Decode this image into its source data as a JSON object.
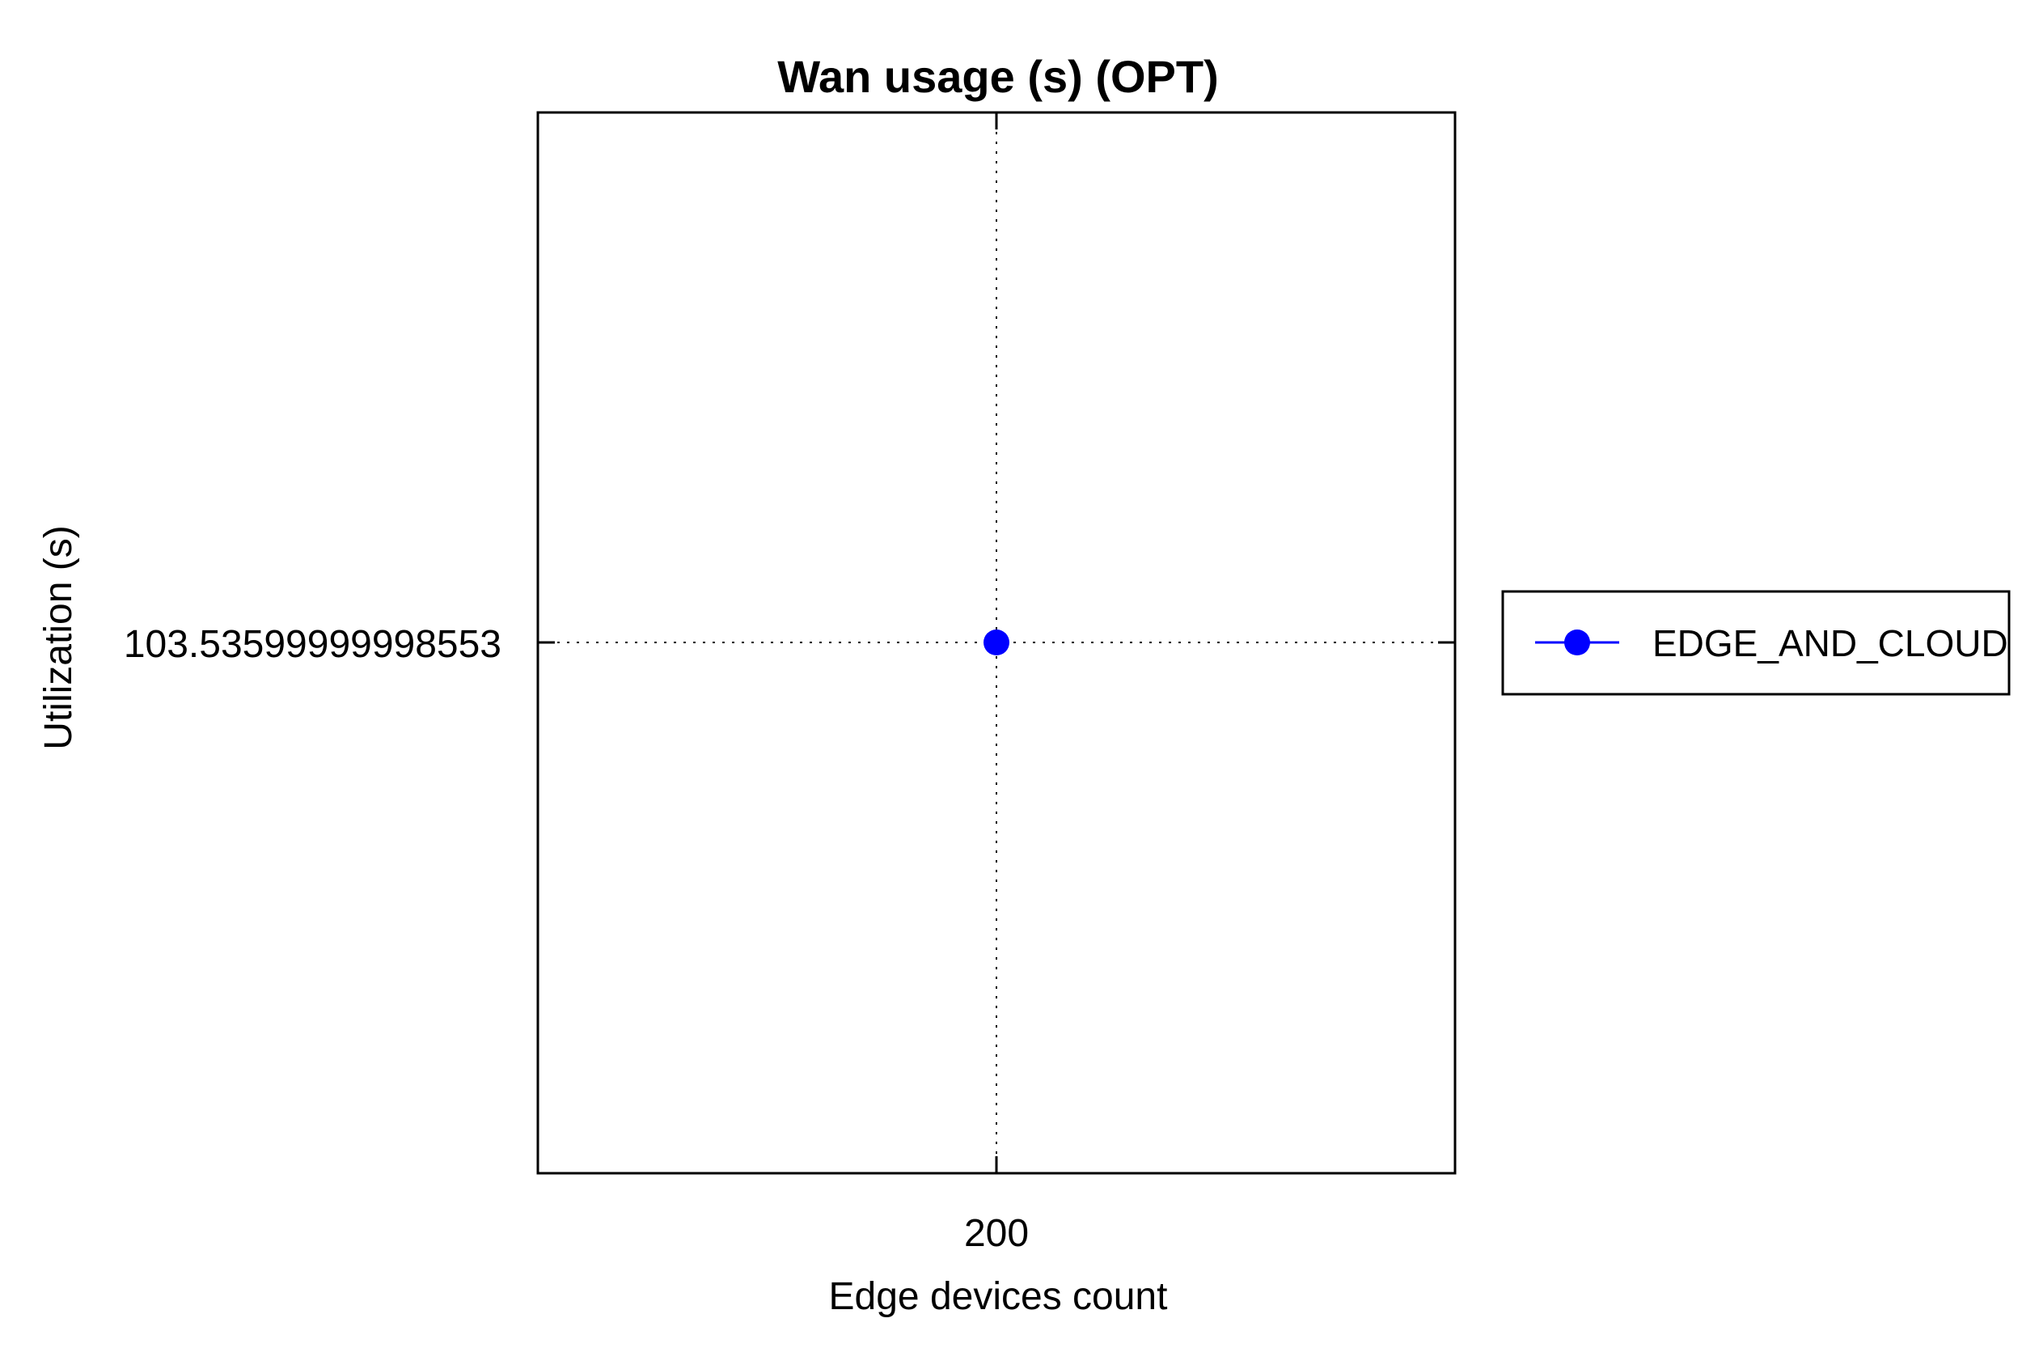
{
  "chart_data": {
    "type": "line",
    "title": "Wan usage (s) (OPT)",
    "xlabel": "Edge devices count",
    "ylabel": "Utilization (s)",
    "x": [
      200
    ],
    "x_tick_labels": [
      "200"
    ],
    "y_tick_labels": [
      "103.53599999998553"
    ],
    "series": [
      {
        "name": "EDGE_AND_CLOUD",
        "x": [
          200
        ],
        "values": [
          103.53599999998553
        ],
        "color": "#0000ff",
        "marker": "circle"
      }
    ],
    "grid": true,
    "grid_style": "dotted",
    "legend_position": "right"
  }
}
